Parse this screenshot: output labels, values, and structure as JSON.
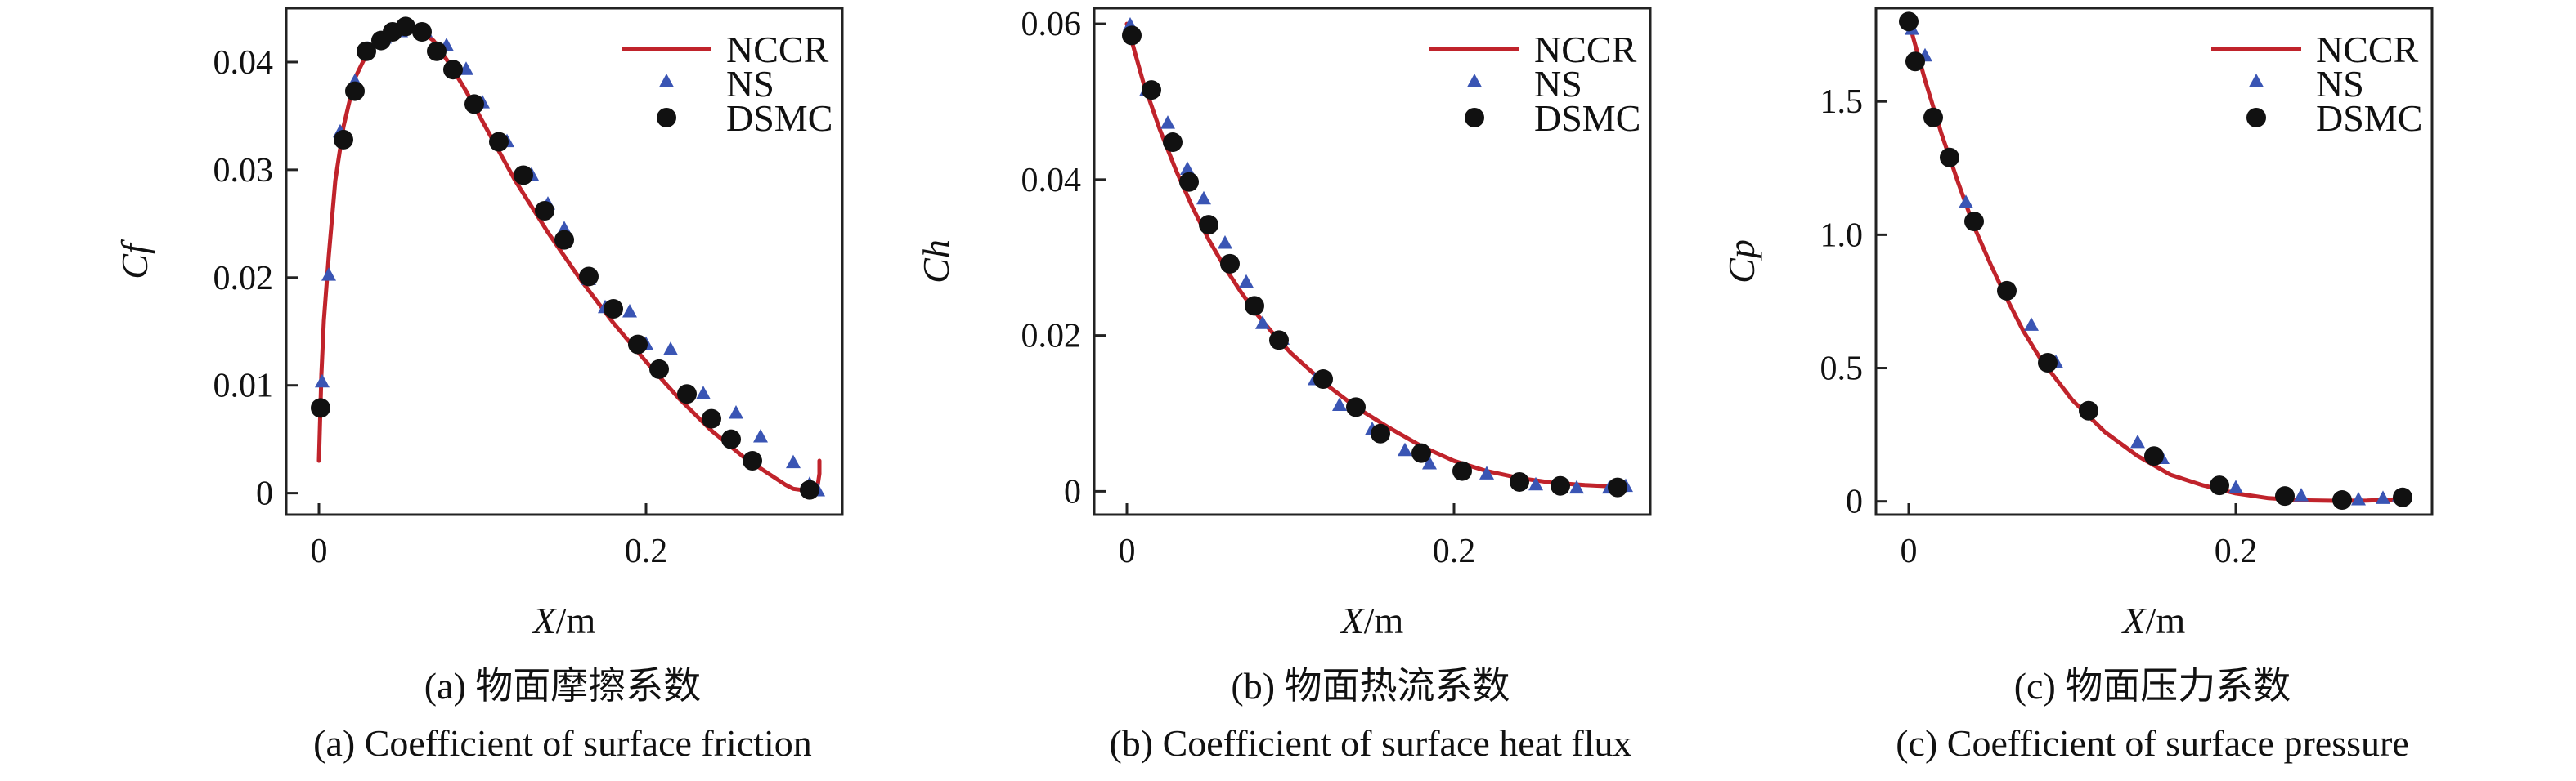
{
  "colors": {
    "nccr": "#c0232b",
    "ns": "#3a55b4",
    "dsmc": "#111111",
    "axis": "#222222"
  },
  "legend_labels": [
    "NCCR",
    "NS",
    "DSMC"
  ],
  "chart_data": [
    {
      "type": "line",
      "ylabel": "Cf",
      "xlabel_var": "X",
      "xlabel_unit": "/m",
      "xlim": [
        -0.02,
        0.32
      ],
      "ylim": [
        -0.002,
        0.045
      ],
      "xticks": [
        0,
        0.2
      ],
      "xtick_labels": [
        "0",
        "0.2"
      ],
      "yticks": [
        0,
        0.01,
        0.02,
        0.03,
        0.04
      ],
      "ytick_labels": [
        "0",
        "0.01",
        "0.02",
        "0.03",
        "0.04"
      ],
      "legend_position": "top-right",
      "caption_cn": "(a) 物面摩擦系数",
      "caption_en": "(a) Coefficient of surface friction",
      "series": [
        {
          "name": "NCCR",
          "marker": "line",
          "x": [
            0.0,
            0.0015,
            0.003,
            0.006,
            0.01,
            0.015,
            0.022,
            0.03,
            0.04,
            0.05,
            0.055,
            0.06,
            0.07,
            0.08,
            0.09,
            0.1,
            0.12,
            0.14,
            0.16,
            0.18,
            0.2,
            0.22,
            0.24,
            0.26,
            0.275,
            0.285,
            0.29,
            0.295,
            0.3,
            0.303,
            0.305,
            0.306,
            0.306
          ],
          "y": [
            0.003,
            0.011,
            0.016,
            0.022,
            0.029,
            0.034,
            0.0385,
            0.041,
            0.0425,
            0.0432,
            0.0433,
            0.0431,
            0.042,
            0.0398,
            0.0373,
            0.0345,
            0.029,
            0.0242,
            0.0198,
            0.0158,
            0.0122,
            0.0088,
            0.0058,
            0.0033,
            0.0018,
            0.0008,
            0.0004,
            0.0003,
            0.0005,
            0.0006,
            0.0008,
            0.0018,
            0.003
          ]
        },
        {
          "name": "NS",
          "marker": "triangle",
          "x": [
            0.002,
            0.006,
            0.013,
            0.022,
            0.03,
            0.04,
            0.05,
            0.065,
            0.078,
            0.09,
            0.1,
            0.115,
            0.13,
            0.14,
            0.15,
            0.165,
            0.175,
            0.19,
            0.2,
            0.215,
            0.235,
            0.255,
            0.27,
            0.29,
            0.3,
            0.305
          ],
          "y": [
            0.0103,
            0.0202,
            0.0335,
            0.0382,
            0.0412,
            0.0422,
            0.0428,
            0.0428,
            0.0415,
            0.0393,
            0.0362,
            0.0326,
            0.0295,
            0.0268,
            0.0245,
            0.0198,
            0.0172,
            0.0168,
            0.0138,
            0.0133,
            0.0092,
            0.0074,
            0.0052,
            0.0028,
            0.0008,
            0.0002
          ]
        },
        {
          "name": "DSMC",
          "marker": "circle",
          "x": [
            0.001,
            0.015,
            0.022,
            0.029,
            0.038,
            0.045,
            0.053,
            0.063,
            0.072,
            0.082,
            0.095,
            0.11,
            0.125,
            0.138,
            0.15,
            0.165,
            0.18,
            0.195,
            0.208,
            0.225,
            0.24,
            0.252,
            0.265,
            0.3
          ],
          "y": [
            0.0079,
            0.0328,
            0.0373,
            0.041,
            0.042,
            0.0428,
            0.0433,
            0.0428,
            0.041,
            0.0393,
            0.0361,
            0.0326,
            0.0295,
            0.0262,
            0.0235,
            0.0201,
            0.0171,
            0.0138,
            0.0115,
            0.0092,
            0.0069,
            0.005,
            0.003,
            0.0003
          ]
        }
      ]
    },
    {
      "type": "line",
      "ylabel": "Ch",
      "xlabel_var": "X",
      "xlabel_unit": "/m",
      "xlim": [
        -0.02,
        0.32
      ],
      "ylim": [
        -0.003,
        0.062
      ],
      "xticks": [
        0,
        0.2
      ],
      "xtick_labels": [
        "0",
        "0.2"
      ],
      "yticks": [
        0,
        0.02,
        0.04,
        0.06
      ],
      "ytick_labels": [
        "0",
        "0.02",
        "0.04",
        "0.06"
      ],
      "legend_position": "top-right",
      "caption_cn": "(b) 物面热流系数",
      "caption_en": "(b) Coefficient of surface heat flux",
      "series": [
        {
          "name": "NCCR",
          "marker": "line",
          "x": [
            0.0,
            0.01,
            0.02,
            0.03,
            0.04,
            0.05,
            0.06,
            0.07,
            0.08,
            0.09,
            0.1,
            0.12,
            0.14,
            0.16,
            0.18,
            0.2,
            0.22,
            0.24,
            0.26,
            0.28,
            0.3
          ],
          "y": [
            0.06,
            0.0525,
            0.0465,
            0.0412,
            0.0365,
            0.0323,
            0.0287,
            0.0255,
            0.0226,
            0.0201,
            0.0178,
            0.014,
            0.0108,
            0.0082,
            0.0058,
            0.0039,
            0.0026,
            0.0017,
            0.0011,
            0.0008,
            0.0006
          ]
        },
        {
          "name": "NS",
          "marker": "triangle",
          "x": [
            0.002,
            0.012,
            0.025,
            0.037,
            0.047,
            0.06,
            0.073,
            0.083,
            0.095,
            0.115,
            0.13,
            0.15,
            0.17,
            0.185,
            0.205,
            0.22,
            0.25,
            0.275,
            0.295,
            0.305
          ],
          "y": [
            0.0598,
            0.0514,
            0.0472,
            0.0413,
            0.0375,
            0.0318,
            0.0268,
            0.0215,
            0.0195,
            0.0143,
            0.011,
            0.0079,
            0.0052,
            0.0035,
            0.0028,
            0.0022,
            0.0008,
            0.0004,
            0.0004,
            0.0006
          ]
        },
        {
          "name": "DSMC",
          "marker": "circle",
          "x": [
            0.003,
            0.015,
            0.028,
            0.038,
            0.05,
            0.063,
            0.078,
            0.093,
            0.12,
            0.14,
            0.155,
            0.18,
            0.205,
            0.24,
            0.265,
            0.3
          ],
          "y": [
            0.0585,
            0.0515,
            0.0448,
            0.0397,
            0.0342,
            0.0292,
            0.0238,
            0.0194,
            0.0144,
            0.0108,
            0.0074,
            0.0049,
            0.0026,
            0.0012,
            0.0007,
            0.0005
          ]
        }
      ]
    },
    {
      "type": "line",
      "ylabel": "Cp",
      "xlabel_var": "X",
      "xlabel_unit": "/m",
      "xlim": [
        -0.02,
        0.32
      ],
      "ylim": [
        -0.05,
        1.85
      ],
      "xticks": [
        0,
        0.2
      ],
      "xtick_labels": [
        "0",
        "0.2"
      ],
      "yticks": [
        0,
        0.5,
        1.0,
        1.5
      ],
      "ytick_labels": [
        "0",
        "0.5",
        "1.0",
        "1.5"
      ],
      "legend_position": "top-right",
      "caption_cn": "(c) 物面压力系数",
      "caption_en": "(c) Coefficient of surface pressure",
      "series": [
        {
          "name": "NCCR",
          "marker": "line",
          "x": [
            0.0,
            0.01,
            0.02,
            0.03,
            0.04,
            0.05,
            0.06,
            0.07,
            0.08,
            0.09,
            0.1,
            0.12,
            0.14,
            0.16,
            0.18,
            0.2,
            0.22,
            0.24,
            0.26,
            0.28,
            0.3
          ],
          "y": [
            1.8,
            1.58,
            1.38,
            1.2,
            1.03,
            0.89,
            0.76,
            0.64,
            0.54,
            0.46,
            0.38,
            0.26,
            0.17,
            0.1,
            0.06,
            0.03,
            0.012,
            0.004,
            0.002,
            0.003,
            0.008
          ]
        },
        {
          "name": "NS",
          "marker": "triangle",
          "x": [
            0.002,
            0.01,
            0.035,
            0.075,
            0.09,
            0.14,
            0.155,
            0.2,
            0.24,
            0.275,
            0.29,
            0.3
          ],
          "y": [
            1.77,
            1.67,
            1.12,
            0.66,
            0.52,
            0.22,
            0.16,
            0.05,
            0.02,
            0.005,
            0.01,
            0.02
          ]
        },
        {
          "name": "DSMC",
          "marker": "circle",
          "x": [
            0.0,
            0.004,
            0.015,
            0.025,
            0.04,
            0.06,
            0.085,
            0.11,
            0.15,
            0.19,
            0.23,
            0.265,
            0.302
          ],
          "y": [
            1.8,
            1.65,
            1.44,
            1.29,
            1.05,
            0.79,
            0.52,
            0.34,
            0.17,
            0.06,
            0.02,
            0.005,
            0.015
          ]
        }
      ]
    }
  ]
}
